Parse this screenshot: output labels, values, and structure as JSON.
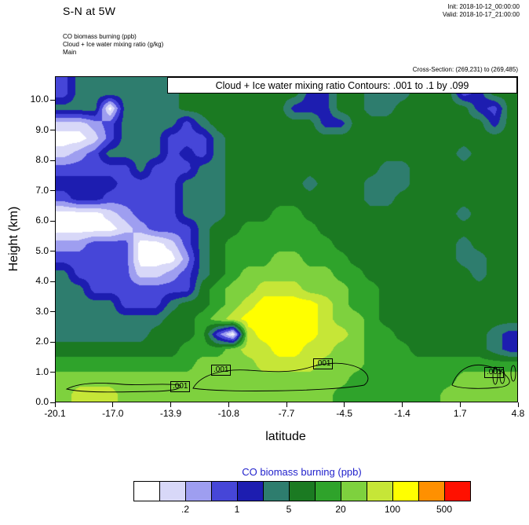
{
  "header": {
    "title": "S-N at 5W",
    "init": "Init: 2018-10-12_00:00:00",
    "valid": "Valid: 2018-10-17_21:00:00",
    "field_co": "CO biomass burning   (ppb)",
    "field_cloud": "Cloud + Ice water mixing ratio   (g/kg)",
    "field_main": "Main",
    "cross_section": "Cross-Section: (269,231) to (269,485)"
  },
  "plot": {
    "contour_note": "Cloud + Ice water mixing ratio Contours: .001 to .1 by .099",
    "contour_labels": [
      ".001",
      ".001",
      ".001",
      ".001"
    ]
  },
  "colorbar": {
    "title": "CO biomass burning  (ppb)",
    "title_color": "#2222cc",
    "tick_labels": [
      ".2",
      "1",
      "5",
      "20",
      "100",
      "500"
    ]
  },
  "chart_data": {
    "type": "heatmap",
    "title": "S-N at 5W",
    "subtitle": "Vertical cross-section of CO biomass burning (filled) with Cloud + Ice water mixing ratio contours (.001 to .1 by .099)",
    "xlabel": "latitude",
    "ylabel": "Height (km)",
    "units": "ppb",
    "x_range": [
      -20.1,
      4.8
    ],
    "y_range": [
      0,
      10.78
    ],
    "x_tick_labels": [
      "-20.1",
      "-17.0",
      "-13.9",
      "-10.8",
      "-7.7",
      "-4.5",
      "-1.4",
      "1.7",
      "4.8"
    ],
    "y_tick_labels": [
      "0.0",
      "1.0",
      "2.0",
      "3.0",
      "4.0",
      "5.0",
      "6.0",
      "7.0",
      "8.0",
      "9.0",
      "10.0"
    ],
    "level_boundaries": [
      0.1,
      0.2,
      0.5,
      1,
      2,
      5,
      10,
      20,
      50,
      100,
      200,
      500
    ],
    "level_colors": [
      "#ffffff",
      "#d8d8f8",
      "#9e9ef0",
      "#4646d8",
      "#1d1db0",
      "#2e7d6e",
      "#1b7a22",
      "#2fa32b",
      "#7ed13e",
      "#c6e637",
      "#ffff00",
      "#ff9000",
      "#ff1000"
    ],
    "grid_top_km": 10.5,
    "grid_row_step_km": 0.5,
    "grid_note": "CO level indices (0-12 into level_colors); rows top to bottom from 10.25 km to 0.25 km, 30 columns spanning latitude -20.1 to 4.8",
    "grid": [
      [
        3,
        5,
        5,
        5,
        5,
        5,
        5,
        5,
        6,
        6,
        6,
        6,
        6,
        6,
        6,
        6,
        4,
        4,
        6,
        6,
        5,
        5,
        5,
        6,
        6,
        6,
        3,
        4,
        6,
        6
      ],
      [
        5,
        5,
        5,
        0,
        5,
        5,
        5,
        5,
        6,
        6,
        6,
        6,
        6,
        6,
        6,
        4,
        4,
        4,
        6,
        6,
        5,
        5,
        6,
        6,
        6,
        6,
        6,
        4,
        3,
        6
      ],
      [
        1,
        1,
        2,
        3,
        5,
        5,
        5,
        5,
        3,
        5,
        6,
        6,
        6,
        6,
        6,
        6,
        6,
        4,
        4,
        6,
        6,
        6,
        6,
        6,
        6,
        6,
        6,
        6,
        4,
        6
      ],
      [
        0,
        0,
        1,
        3,
        5,
        5,
        5,
        3,
        3,
        3,
        5,
        6,
        6,
        6,
        6,
        6,
        6,
        6,
        6,
        6,
        6,
        6,
        6,
        6,
        6,
        6,
        6,
        6,
        6,
        6
      ],
      [
        1,
        2,
        3,
        5,
        5,
        5,
        5,
        3,
        4,
        3,
        5,
        6,
        6,
        6,
        6,
        6,
        6,
        6,
        6,
        6,
        6,
        6,
        6,
        6,
        6,
        6,
        5,
        6,
        6,
        6
      ],
      [
        3,
        3,
        3,
        3,
        3,
        5,
        3,
        3,
        3,
        5,
        5,
        6,
        6,
        6,
        6,
        6,
        6,
        6,
        6,
        6,
        6,
        5,
        5,
        6,
        6,
        6,
        6,
        6,
        6,
        6
      ],
      [
        4,
        4,
        4,
        4,
        3,
        3,
        3,
        3,
        5,
        5,
        5,
        6,
        6,
        6,
        6,
        6,
        5,
        6,
        6,
        6,
        5,
        5,
        5,
        6,
        6,
        6,
        6,
        6,
        6,
        6
      ],
      [
        3,
        4,
        4,
        3,
        3,
        3,
        3,
        3,
        5,
        5,
        5,
        6,
        6,
        6,
        6,
        6,
        6,
        6,
        6,
        6,
        5,
        5,
        6,
        6,
        6,
        6,
        6,
        6,
        6,
        6
      ],
      [
        0,
        0,
        0,
        1,
        2,
        3,
        3,
        3,
        5,
        5,
        5,
        6,
        6,
        6,
        7,
        7,
        6,
        6,
        6,
        6,
        6,
        6,
        6,
        6,
        6,
        6,
        5,
        6,
        6,
        6
      ],
      [
        0,
        0,
        0,
        0,
        1,
        2,
        3,
        3,
        3,
        5,
        6,
        6,
        7,
        7,
        7,
        7,
        7,
        6,
        6,
        6,
        6,
        6,
        6,
        6,
        6,
        6,
        6,
        6,
        6,
        6
      ],
      [
        2,
        2,
        3,
        3,
        3,
        0,
        0,
        1,
        3,
        5,
        6,
        7,
        7,
        7,
        7,
        7,
        7,
        7,
        6,
        6,
        6,
        6,
        6,
        6,
        6,
        6,
        5,
        6,
        6,
        6
      ],
      [
        3,
        3,
        3,
        3,
        3,
        0,
        0,
        0,
        2,
        5,
        6,
        7,
        7,
        7,
        8,
        8,
        7,
        7,
        7,
        6,
        6,
        6,
        6,
        6,
        6,
        6,
        5,
        5,
        6,
        6
      ],
      [
        5,
        3,
        3,
        3,
        3,
        1,
        1,
        2,
        3,
        5,
        6,
        7,
        8,
        8,
        8,
        8,
        8,
        8,
        7,
        7,
        6,
        6,
        6,
        6,
        6,
        6,
        6,
        5,
        6,
        6
      ],
      [
        5,
        5,
        3,
        3,
        3,
        3,
        3,
        3,
        3,
        6,
        7,
        8,
        8,
        9,
        9,
        9,
        8,
        8,
        8,
        7,
        7,
        6,
        6,
        6,
        6,
        6,
        6,
        6,
        6,
        6
      ],
      [
        5,
        5,
        5,
        5,
        3,
        3,
        3,
        5,
        6,
        6,
        7,
        8,
        9,
        10,
        10,
        10,
        10,
        9,
        8,
        7,
        7,
        6,
        6,
        6,
        6,
        6,
        6,
        6,
        6,
        6
      ],
      [
        5,
        5,
        5,
        5,
        5,
        5,
        5,
        6,
        6,
        7,
        8,
        9,
        10,
        10,
        10,
        10,
        10,
        9,
        8,
        8,
        7,
        6,
        6,
        6,
        6,
        6,
        6,
        6,
        6,
        6
      ],
      [
        5,
        5,
        5,
        5,
        5,
        5,
        6,
        6,
        6,
        7,
        3,
        0,
        9,
        10,
        10,
        10,
        10,
        9,
        9,
        8,
        7,
        7,
        6,
        6,
        6,
        6,
        6,
        6,
        5,
        4
      ],
      [
        6,
        6,
        6,
        6,
        6,
        6,
        6,
        6,
        7,
        7,
        7,
        8,
        9,
        9,
        10,
        10,
        9,
        9,
        8,
        8,
        7,
        7,
        7,
        6,
        6,
        6,
        6,
        6,
        5,
        4
      ],
      [
        7,
        7,
        7,
        7,
        7,
        7,
        7,
        7,
        7,
        8,
        8,
        8,
        8,
        9,
        9,
        9,
        9,
        8,
        8,
        8,
        7,
        7,
        7,
        7,
        7,
        7,
        7,
        7,
        7,
        7
      ],
      [
        8,
        8,
        8,
        8,
        8,
        8,
        8,
        8,
        8,
        8,
        8,
        8,
        8,
        8,
        8,
        8,
        8,
        8,
        8,
        7,
        7,
        7,
        7,
        7,
        7,
        7,
        8,
        8,
        8,
        8
      ],
      [
        8,
        9,
        9,
        9,
        8,
        8,
        8,
        8,
        8,
        8,
        8,
        8,
        8,
        8,
        8,
        8,
        8,
        8,
        7,
        7,
        7,
        7,
        7,
        7,
        7,
        8,
        8,
        8,
        8,
        8
      ]
    ],
    "contour_overlay": {
      "field": "Cloud + Ice water mixing ratio (g/kg)",
      "levels": ".001 to .1 by .099",
      "label": ".001",
      "location": "thin black loops between 0.3 and 1.5 km across the section"
    },
    "legend": {
      "position": "bottom",
      "title": "CO biomass burning  (ppb)",
      "labeled_boundaries": [
        ".2",
        "1",
        "5",
        "20",
        "100",
        "500"
      ]
    }
  }
}
